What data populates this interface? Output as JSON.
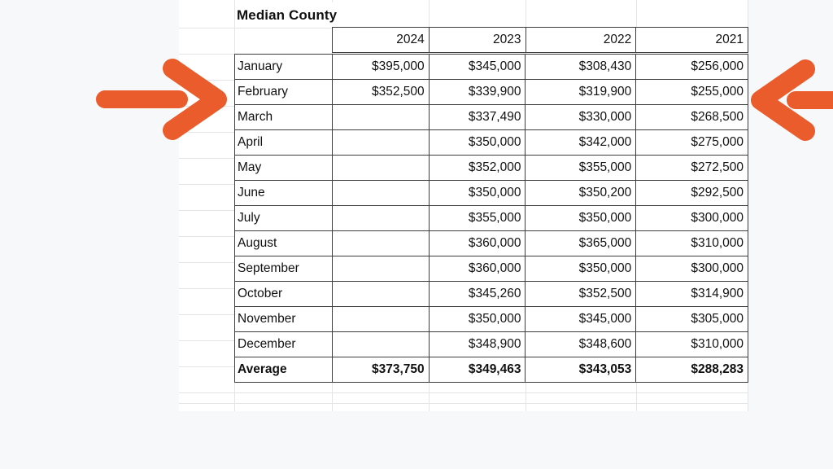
{
  "sheet": {
    "title": "Median County",
    "years": [
      "2024",
      "2023",
      "2022",
      "2021"
    ],
    "rows": [
      {
        "month": "January",
        "values": [
          "$395,000",
          "$345,000",
          "$308,430",
          "$256,000"
        ]
      },
      {
        "month": "February",
        "values": [
          "$352,500",
          "$339,900",
          "$319,900",
          "$255,000"
        ]
      },
      {
        "month": "March",
        "values": [
          "",
          "$337,490",
          "$330,000",
          "$268,500"
        ]
      },
      {
        "month": "April",
        "values": [
          "",
          "$350,000",
          "$342,000",
          "$275,000"
        ]
      },
      {
        "month": "May",
        "values": [
          "",
          "$352,000",
          "$355,000",
          "$272,500"
        ]
      },
      {
        "month": "June",
        "values": [
          "",
          "$350,000",
          "$350,200",
          "$292,500"
        ]
      },
      {
        "month": "July",
        "values": [
          "",
          "$355,000",
          "$350,000",
          "$300,000"
        ]
      },
      {
        "month": "August",
        "values": [
          "",
          "$360,000",
          "$365,000",
          "$310,000"
        ]
      },
      {
        "month": "September",
        "values": [
          "",
          "$360,000",
          "$350,000",
          "$300,000"
        ]
      },
      {
        "month": "October",
        "values": [
          "",
          "$345,260",
          "$352,500",
          "$314,900"
        ]
      },
      {
        "month": "November",
        "values": [
          "",
          "$350,000",
          "$345,000",
          "$305,000"
        ]
      },
      {
        "month": "December",
        "values": [
          "",
          "$348,900",
          "$348,600",
          "$310,000"
        ]
      }
    ],
    "average": {
      "label": "Average",
      "values": [
        "$373,750",
        "$349,463",
        "$343,053",
        "$288,283"
      ]
    }
  },
  "annotations": {
    "left_arrow": "arrow pointing right at February row",
    "right_arrow": "arrow pointing left at February row"
  },
  "colors": {
    "arrow": "#ea5c2b",
    "background": "#f7f8f9",
    "gridline": "#e3e4e6",
    "cell_border": "#3d3d3d",
    "text": "#111111"
  }
}
